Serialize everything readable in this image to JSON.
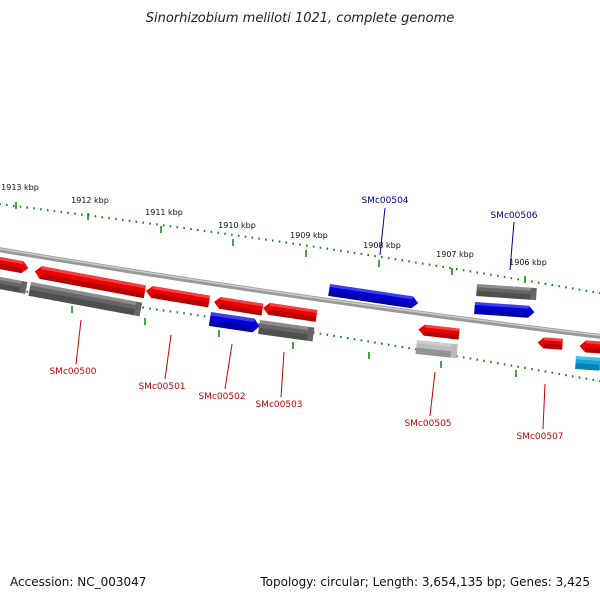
{
  "title": "Sinorhizobium meliloti 1021, complete genome",
  "footer": {
    "accession": "Accession: NC_003047",
    "summary": "Topology: circular; Length: 3,654,135 bp; Genes: 3,425"
  },
  "colors": {
    "red_gene": "#ee0000",
    "blue_gene": "#0000dd",
    "cyan_gene": "#11a8dd",
    "gray_gene": "#666666",
    "lightgray_gene": "#bbbbbb",
    "backbone": "#888888",
    "tick": "#1a8a1a",
    "label_red": "#cc0000",
    "label_blue": "#000099"
  },
  "kbp_labels": [
    "1913 kbp",
    "1912 kbp",
    "1911 kbp",
    "1910 kbp",
    "1909 kbp",
    "1908 kbp",
    "1907 kbp",
    "1906 kbp"
  ],
  "genes_labeled": [
    {
      "id": "SMc00500",
      "color": "label_red"
    },
    {
      "id": "SMc00501",
      "color": "label_red"
    },
    {
      "id": "SMc00502",
      "color": "label_red"
    },
    {
      "id": "SMc00503",
      "color": "label_red"
    },
    {
      "id": "SMc00504",
      "color": "label_blue"
    },
    {
      "id": "SMc00505",
      "color": "label_red"
    },
    {
      "id": "SMc00506",
      "color": "label_blue"
    },
    {
      "id": "SMc00507",
      "color": "label_red"
    }
  ]
}
